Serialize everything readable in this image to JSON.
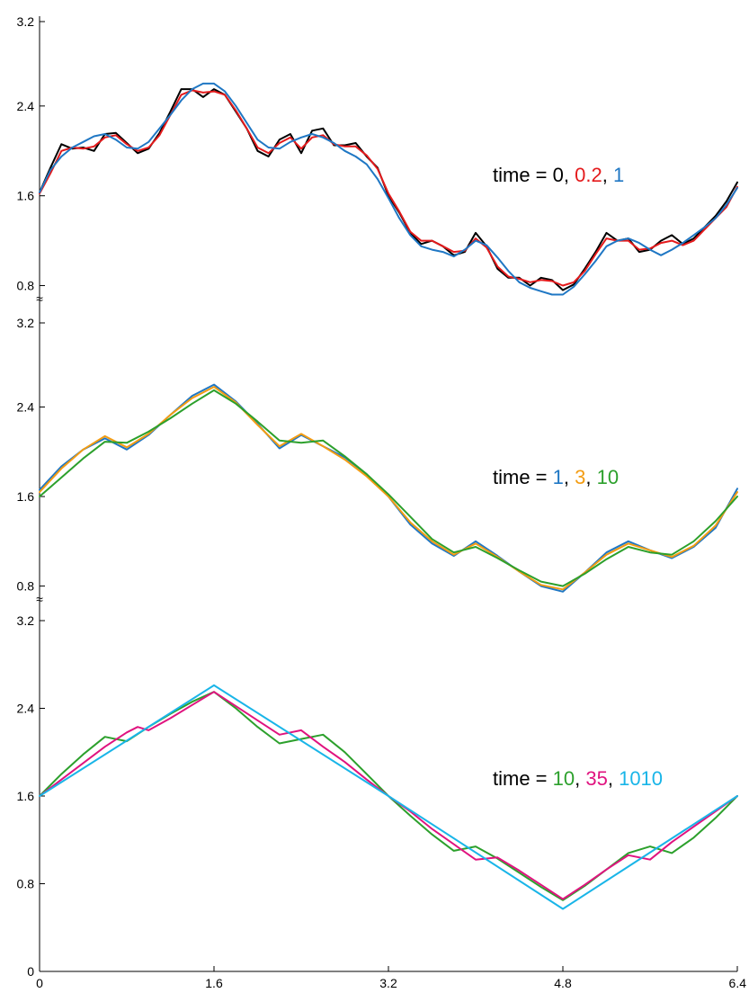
{
  "chart_data": {
    "type": "line",
    "x_ticks": [
      "0",
      "1.6",
      "3.2",
      "4.8",
      "6.4"
    ],
    "xlim": [
      0,
      6.4
    ],
    "colors": {
      "black": "#000000",
      "red": "#e41a1c",
      "blue": "#1f77c4",
      "orange": "#f39c12",
      "green": "#2ca02c",
      "magenta": "#e0137f",
      "cyan": "#19b5e8"
    },
    "panels": [
      {
        "ylim": [
          0.7,
          3.2
        ],
        "y_ticks": [
          "3.2",
          "2.4",
          "1.6",
          "0.8"
        ],
        "break_mark": "≈",
        "legend": {
          "prefix": "time = ",
          "items": [
            {
              "text": "0",
              "color": "#000000"
            },
            {
              "text": "0.2",
              "color": "#e41a1c"
            },
            {
              "text": "1",
              "color": "#1f77c4"
            }
          ]
        },
        "series": [
          {
            "color": "#000000",
            "x": [
              0,
              0.1,
              0.2,
              0.3,
              0.4,
              0.5,
              0.6,
              0.7,
              0.8,
              0.9,
              1.0,
              1.1,
              1.2,
              1.3,
              1.4,
              1.5,
              1.6,
              1.7,
              1.8,
              1.9,
              2.0,
              2.1,
              2.2,
              2.3,
              2.4,
              2.5,
              2.6,
              2.7,
              2.8,
              2.9,
              3.0,
              3.1,
              3.2,
              3.3,
              3.4,
              3.5,
              3.6,
              3.7,
              3.8,
              3.9,
              4.0,
              4.1,
              4.2,
              4.3,
              4.4,
              4.5,
              4.6,
              4.7,
              4.8,
              4.9,
              5.0,
              5.1,
              5.2,
              5.3,
              5.4,
              5.5,
              5.6,
              5.7,
              5.8,
              5.9,
              6.0,
              6.1,
              6.2,
              6.3,
              6.4
            ],
            "y": [
              1.63,
              1.85,
              2.06,
              2.02,
              2.03,
              2.0,
              2.15,
              2.16,
              2.07,
              1.98,
              2.02,
              2.16,
              2.35,
              2.55,
              2.55,
              2.48,
              2.55,
              2.5,
              2.35,
              2.2,
              2.0,
              1.95,
              2.1,
              2.15,
              1.98,
              2.18,
              2.2,
              2.05,
              2.05,
              2.07,
              1.95,
              1.85,
              1.6,
              1.45,
              1.27,
              1.17,
              1.2,
              1.15,
              1.07,
              1.1,
              1.27,
              1.15,
              0.95,
              0.87,
              0.87,
              0.8,
              0.87,
              0.85,
              0.76,
              0.81,
              0.95,
              1.1,
              1.27,
              1.2,
              1.22,
              1.1,
              1.12,
              1.2,
              1.25,
              1.17,
              1.22,
              1.32,
              1.42,
              1.55,
              1.72
            ]
          },
          {
            "color": "#e41a1c",
            "x": [
              0,
              0.1,
              0.2,
              0.3,
              0.4,
              0.5,
              0.6,
              0.7,
              0.8,
              0.9,
              1.0,
              1.1,
              1.2,
              1.3,
              1.4,
              1.5,
              1.6,
              1.7,
              1.8,
              1.9,
              2.0,
              2.1,
              2.2,
              2.3,
              2.4,
              2.5,
              2.6,
              2.7,
              2.8,
              2.9,
              3.0,
              3.1,
              3.2,
              3.3,
              3.4,
              3.5,
              3.6,
              3.7,
              3.8,
              3.9,
              4.0,
              4.1,
              4.2,
              4.3,
              4.4,
              4.5,
              4.6,
              4.7,
              4.8,
              4.9,
              5.0,
              5.1,
              5.2,
              5.3,
              5.4,
              5.5,
              5.6,
              5.7,
              5.8,
              5.9,
              6.0,
              6.1,
              6.2,
              6.3,
              6.4
            ],
            "y": [
              1.62,
              1.8,
              2.0,
              2.03,
              2.02,
              2.04,
              2.12,
              2.14,
              2.06,
              2.0,
              2.03,
              2.14,
              2.32,
              2.5,
              2.54,
              2.52,
              2.53,
              2.5,
              2.36,
              2.2,
              2.03,
              1.98,
              2.07,
              2.12,
              2.02,
              2.12,
              2.14,
              2.06,
              2.04,
              2.04,
              1.96,
              1.84,
              1.62,
              1.46,
              1.28,
              1.2,
              1.2,
              1.15,
              1.1,
              1.11,
              1.22,
              1.14,
              0.97,
              0.88,
              0.86,
              0.83,
              0.85,
              0.84,
              0.8,
              0.83,
              0.93,
              1.08,
              1.22,
              1.2,
              1.2,
              1.12,
              1.13,
              1.18,
              1.2,
              1.16,
              1.2,
              1.3,
              1.4,
              1.5,
              1.68
            ]
          },
          {
            "color": "#1f77c4",
            "x": [
              0,
              0.1,
              0.2,
              0.3,
              0.4,
              0.5,
              0.6,
              0.7,
              0.8,
              0.9,
              1.0,
              1.1,
              1.2,
              1.3,
              1.4,
              1.5,
              1.6,
              1.7,
              1.8,
              1.9,
              2.0,
              2.1,
              2.2,
              2.3,
              2.4,
              2.5,
              2.6,
              2.7,
              2.8,
              2.9,
              3.0,
              3.1,
              3.2,
              3.3,
              3.4,
              3.5,
              3.6,
              3.7,
              3.8,
              3.9,
              4.0,
              4.1,
              4.2,
              4.3,
              4.4,
              4.5,
              4.6,
              4.7,
              4.8,
              4.9,
              5.0,
              5.1,
              5.2,
              5.3,
              5.4,
              5.5,
              5.6,
              5.7,
              5.8,
              5.9,
              6.0,
              6.1,
              6.2,
              6.3,
              6.4
            ],
            "y": [
              1.63,
              1.83,
              1.95,
              2.03,
              2.08,
              2.13,
              2.15,
              2.1,
              2.03,
              2.02,
              2.08,
              2.2,
              2.32,
              2.45,
              2.55,
              2.6,
              2.6,
              2.53,
              2.4,
              2.25,
              2.1,
              2.03,
              2.02,
              2.08,
              2.12,
              2.15,
              2.12,
              2.07,
              2.0,
              1.95,
              1.88,
              1.75,
              1.58,
              1.4,
              1.25,
              1.15,
              1.12,
              1.1,
              1.06,
              1.12,
              1.2,
              1.16,
              1.05,
              0.93,
              0.83,
              0.78,
              0.75,
              0.72,
              0.72,
              0.79,
              0.9,
              1.02,
              1.15,
              1.2,
              1.22,
              1.18,
              1.12,
              1.07,
              1.12,
              1.18,
              1.25,
              1.32,
              1.4,
              1.52,
              1.67
            ]
          }
        ]
      },
      {
        "ylim": [
          0.7,
          3.2
        ],
        "y_ticks": [
          "3.2",
          "2.4",
          "1.6",
          "0.8"
        ],
        "break_mark": "≈",
        "legend": {
          "prefix": "time = ",
          "items": [
            {
              "text": "1",
              "color": "#1f77c4"
            },
            {
              "text": "3",
              "color": "#f39c12"
            },
            {
              "text": "10",
              "color": "#2ca02c"
            }
          ]
        },
        "series": [
          {
            "color": "#1f77c4",
            "x": [
              0,
              0.2,
              0.4,
              0.6,
              0.8,
              1.0,
              1.2,
              1.4,
              1.6,
              1.8,
              2.0,
              2.2,
              2.4,
              2.6,
              2.8,
              3.0,
              3.2,
              3.4,
              3.6,
              3.8,
              4.0,
              4.2,
              4.4,
              4.6,
              4.8,
              5.0,
              5.2,
              5.4,
              5.6,
              5.8,
              6.0,
              6.2,
              6.4
            ],
            "y": [
              1.66,
              1.87,
              2.02,
              2.12,
              2.02,
              2.15,
              2.33,
              2.5,
              2.6,
              2.45,
              2.25,
              2.03,
              2.15,
              2.05,
              1.95,
              1.8,
              1.6,
              1.35,
              1.18,
              1.07,
              1.2,
              1.07,
              0.93,
              0.8,
              0.75,
              0.92,
              1.1,
              1.2,
              1.12,
              1.05,
              1.15,
              1.32,
              1.67
            ]
          },
          {
            "color": "#f39c12",
            "x": [
              0,
              0.2,
              0.4,
              0.6,
              0.8,
              1.0,
              1.2,
              1.4,
              1.6,
              1.8,
              2.0,
              2.2,
              2.4,
              2.6,
              2.8,
              3.0,
              3.2,
              3.4,
              3.6,
              3.8,
              4.0,
              4.2,
              4.4,
              4.6,
              4.8,
              5.0,
              5.2,
              5.4,
              5.6,
              5.8,
              6.0,
              6.2,
              6.4
            ],
            "y": [
              1.64,
              1.85,
              2.02,
              2.14,
              2.04,
              2.16,
              2.33,
              2.48,
              2.58,
              2.44,
              2.24,
              2.05,
              2.16,
              2.05,
              1.93,
              1.78,
              1.6,
              1.37,
              1.2,
              1.08,
              1.18,
              1.06,
              0.93,
              0.81,
              0.77,
              0.92,
              1.08,
              1.18,
              1.12,
              1.06,
              1.16,
              1.34,
              1.64
            ]
          },
          {
            "color": "#2ca02c",
            "x": [
              0,
              0.2,
              0.4,
              0.6,
              0.8,
              1.0,
              1.2,
              1.4,
              1.6,
              1.8,
              2.0,
              2.2,
              2.4,
              2.6,
              2.8,
              3.0,
              3.2,
              3.4,
              3.6,
              3.8,
              4.0,
              4.2,
              4.4,
              4.6,
              4.8,
              5.0,
              5.2,
              5.4,
              5.6,
              5.8,
              6.0,
              6.2,
              6.4
            ],
            "y": [
              1.6,
              1.77,
              1.94,
              2.09,
              2.08,
              2.18,
              2.3,
              2.43,
              2.55,
              2.43,
              2.27,
              2.1,
              2.08,
              2.1,
              1.96,
              1.8,
              1.62,
              1.42,
              1.22,
              1.1,
              1.15,
              1.05,
              0.94,
              0.84,
              0.8,
              0.91,
              1.04,
              1.15,
              1.1,
              1.08,
              1.2,
              1.38,
              1.6
            ]
          }
        ]
      },
      {
        "ylim": [
          0,
          3.2
        ],
        "y_ticks": [
          "3.2",
          "2.4",
          "1.6",
          "0.8",
          "0"
        ],
        "legend": {
          "prefix": "time = ",
          "items": [
            {
              "text": "10",
              "color": "#2ca02c"
            },
            {
              "text": "35",
              "color": "#e0137f"
            },
            {
              "text": "1010",
              "color": "#19b5e8"
            }
          ]
        },
        "series": [
          {
            "color": "#2ca02c",
            "x": [
              0,
              0.2,
              0.4,
              0.6,
              0.8,
              1.0,
              1.2,
              1.4,
              1.6,
              1.8,
              2.0,
              2.2,
              2.4,
              2.6,
              2.8,
              3.0,
              3.2,
              3.4,
              3.6,
              3.8,
              4.0,
              4.2,
              4.4,
              4.6,
              4.8,
              5.0,
              5.2,
              5.4,
              5.6,
              5.8,
              6.0,
              6.2,
              6.4
            ],
            "y": [
              1.6,
              1.8,
              1.98,
              2.14,
              2.1,
              2.23,
              2.35,
              2.46,
              2.55,
              2.4,
              2.23,
              2.08,
              2.12,
              2.16,
              2.0,
              1.8,
              1.6,
              1.42,
              1.25,
              1.1,
              1.14,
              1.03,
              0.9,
              0.77,
              0.65,
              0.78,
              0.93,
              1.08,
              1.14,
              1.08,
              1.22,
              1.4,
              1.6
            ]
          },
          {
            "color": "#e0137f",
            "x": [
              0,
              0.2,
              0.4,
              0.6,
              0.8,
              0.9,
              1.0,
              1.2,
              1.4,
              1.6,
              1.8,
              2.0,
              2.2,
              2.4,
              2.6,
              2.8,
              3.0,
              3.2,
              3.4,
              3.6,
              3.8,
              4.0,
              4.2,
              4.4,
              4.6,
              4.8,
              5.0,
              5.2,
              5.4,
              5.6,
              5.8,
              6.0,
              6.2,
              6.4
            ],
            "y": [
              1.6,
              1.75,
              1.9,
              2.05,
              2.18,
              2.23,
              2.2,
              2.31,
              2.43,
              2.55,
              2.42,
              2.29,
              2.16,
              2.2,
              2.05,
              1.91,
              1.75,
              1.6,
              1.46,
              1.3,
              1.16,
              1.02,
              1.04,
              0.92,
              0.79,
              0.66,
              0.79,
              0.93,
              1.06,
              1.02,
              1.18,
              1.32,
              1.46,
              1.6
            ]
          },
          {
            "color": "#19b5e8",
            "x": [
              0,
              1.6,
              3.2,
              4.8,
              6.4
            ],
            "y": [
              1.6,
              2.61,
              1.6,
              0.57,
              1.6
            ]
          }
        ]
      }
    ]
  }
}
